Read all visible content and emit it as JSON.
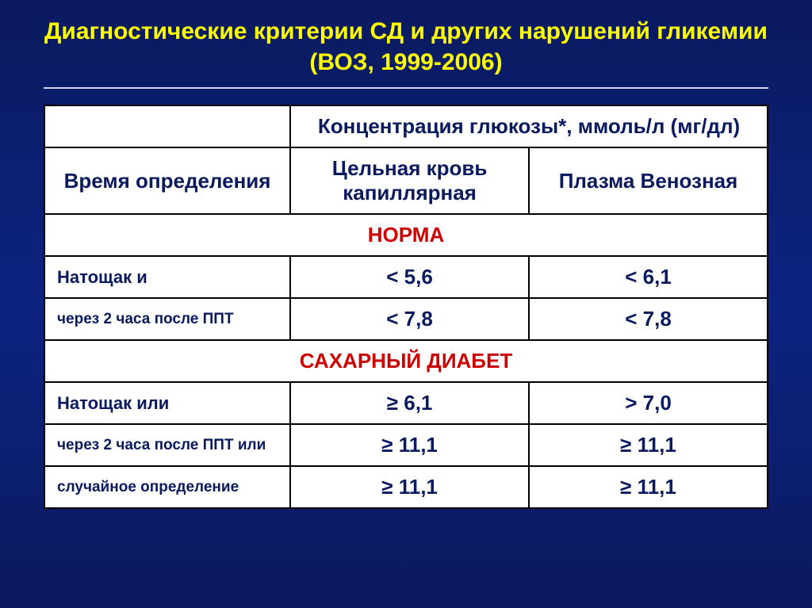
{
  "title": "Диагностические критерии СД и других нарушений гликемии (ВОЗ, 1999-2006)",
  "table": {
    "header": {
      "glucose_concentration": "Концентрация глюкозы*, ммоль/л (мг/дл)",
      "time_determination": "Время определения",
      "whole_blood": "Цельная кровь капиллярная",
      "plasma_venous": "Плазма Венозная"
    },
    "sections": {
      "norm": {
        "title": "НОРМА",
        "rows": [
          {
            "label": "Натощак и",
            "col1": "< 5,6",
            "col2": "< 6,1"
          },
          {
            "label": "через 2 часа после ППТ",
            "col1": "< 7,8",
            "col2": "< 7,8"
          }
        ]
      },
      "diabetes": {
        "title": "САХАРНЫЙ ДИАБЕТ",
        "rows": [
          {
            "label": "Натощак или",
            "col1": "≥ 6,1",
            "col2": "> 7,0"
          },
          {
            "label": "через 2 часа после ППТ или",
            "col1": "≥ 11,1",
            "col2": "≥ 11,1"
          },
          {
            "label": "случайное определение",
            "col1": "≥ 11,1",
            "col2": "≥ 11,1"
          }
        ]
      }
    }
  },
  "colors": {
    "background_top": "#0a1a5e",
    "background_mid": "#0d2380",
    "title_color": "#ffff00",
    "table_bg": "#ffffff",
    "text_color": "#0a1a5e",
    "section_color": "#cc0000",
    "border_color": "#000000"
  }
}
